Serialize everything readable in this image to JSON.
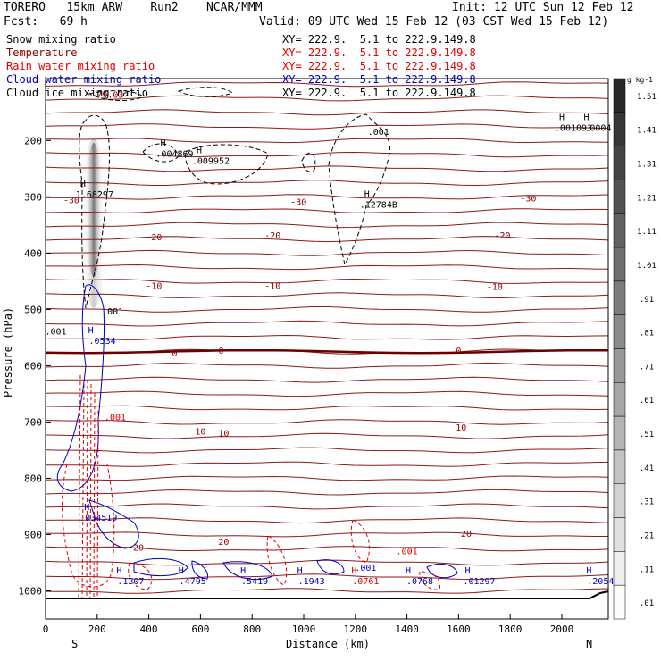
{
  "header": {
    "model": "TORERO   15km ARW    Run2    NCAR/MMM",
    "forecast": "Fcst:   69 h",
    "init": "Init: 12 UTC Sun 12 Feb 12",
    "valid": "Valid: 09 UTC Wed 15 Feb 12 (03 CST Wed 15 Feb 12)"
  },
  "legend": [
    {
      "label": "Snow mixing ratio",
      "xy": "XY= 222.9.  5.1 to 222.9.149.8",
      "color": "#000000"
    },
    {
      "label": "Temperature",
      "xy": "XY= 222.9.  5.1 to 222.9.149.8",
      "color": "#8b0000"
    },
    {
      "label": "Rain water mixing ratio",
      "xy": "XY= 222.9.  5.1 to 222.9.149.8",
      "color": "#e00000"
    },
    {
      "label": "Cloud water mixing ratio",
      "xy": "XY= 222.9.  5.1 to 222.9.149.8",
      "color": "#0000c0"
    },
    {
      "label": "Cloud ice mixing ratio",
      "xy": "XY= 222.9.  5.1 to 222.9.149.8",
      "color": "#000000"
    }
  ],
  "chart_data": {
    "type": "cross-section contour",
    "xlabel": "Distance (km)",
    "ylabel": "Pressure (hPa)",
    "xlim": [
      0,
      2180
    ],
    "ylim": [
      1050,
      90
    ],
    "x_ticks": [
      "0",
      "200",
      "400",
      "600",
      "800",
      "1000",
      "1200",
      "1400",
      "1600",
      "1800",
      "2000"
    ],
    "x_tick_values": [
      0,
      200,
      400,
      600,
      800,
      1000,
      1200,
      1400,
      1600,
      1800,
      2000
    ],
    "y_ticks": [
      "200",
      "300",
      "400",
      "500",
      "600",
      "700",
      "800",
      "900",
      "1000"
    ],
    "y_tick_values": [
      200,
      300,
      400,
      500,
      600,
      700,
      800,
      900,
      1000
    ],
    "x_end_labels": {
      "left": "S",
      "right": "N"
    },
    "colorbar": {
      "unit": "g kg-1",
      "labels": [
        "1.51",
        "1.41",
        "1.31",
        "1.21",
        "1.11",
        "1.01",
        ".91",
        ".81",
        ".71",
        ".61",
        ".51",
        ".41",
        ".31",
        ".21",
        ".11",
        ".01"
      ],
      "values": [
        1.51,
        1.41,
        1.31,
        1.21,
        1.11,
        1.01,
        0.91,
        0.81,
        0.71,
        0.61,
        0.51,
        0.41,
        0.31,
        0.21,
        0.11,
        0.01
      ]
    },
    "temperature_isotherms": [
      {
        "label": "-79.03",
        "label_x": 240,
        "p": 118
      },
      {
        "label": "-30",
        "label_x": 100,
        "p": 305
      },
      {
        "label": "-30",
        "label_x": 980,
        "p": 308
      },
      {
        "label": "-30",
        "label_x": 1870,
        "p": 302
      },
      {
        "label": "-20",
        "label_x": 420,
        "p": 371
      },
      {
        "label": "-20",
        "label_x": 880,
        "p": 368
      },
      {
        "label": "-20",
        "label_x": 1770,
        "p": 368
      },
      {
        "label": "-10",
        "label_x": 420,
        "p": 457
      },
      {
        "label": "-10",
        "label_x": 880,
        "p": 457
      },
      {
        "label": "-10",
        "label_x": 1740,
        "p": 459
      },
      {
        "label": "0",
        "label_x": 500,
        "p": 577
      },
      {
        "label": "0",
        "label_x": 680,
        "p": 572
      },
      {
        "label": "0",
        "label_x": 1600,
        "p": 572
      },
      {
        "label": "10",
        "label_x": 600,
        "p": 716
      },
      {
        "label": "10",
        "label_x": 690,
        "p": 719
      },
      {
        "label": "10",
        "label_x": 1610,
        "p": 709
      },
      {
        "label": "20",
        "label_x": 360,
        "p": 922
      },
      {
        "label": "20",
        "label_x": 690,
        "p": 912
      },
      {
        "label": "20",
        "label_x": 1630,
        "p": 898
      }
    ],
    "max_labels": [
      {
        "text": ".001093",
        "x": 2045,
        "p": 180,
        "color": "#000000"
      },
      {
        "text": ".0004",
        "x": 2140,
        "p": 180,
        "color": "#000000"
      },
      {
        "text": ".004869",
        "x": 500,
        "p": 226,
        "color": "#000000"
      },
      {
        "text": ".009952",
        "x": 640,
        "p": 238,
        "color": "#000000"
      },
      {
        "text": "1.68297",
        "x": 190,
        "p": 298,
        "color": "#000000"
      },
      {
        "text": ".12784B",
        "x": 1290,
        "p": 316,
        "color": "#000000"
      },
      {
        "text": ".0534",
        "x": 220,
        "p": 558,
        "color": "#0000c0"
      },
      {
        "text": ".034519",
        "x": 205,
        "p": 872,
        "color": "#0000c0"
      },
      {
        "text": ".1207",
        "x": 330,
        "p": 985,
        "color": "#0000c0"
      },
      {
        "text": ".4795",
        "x": 570,
        "p": 985,
        "color": "#0000c0"
      },
      {
        "text": ".5419",
        "x": 810,
        "p": 985,
        "color": "#0000c0"
      },
      {
        "text": ".1943",
        "x": 1030,
        "p": 985,
        "color": "#0000c0"
      },
      {
        "text": ".0761",
        "x": 1240,
        "p": 985,
        "color": "#e00000"
      },
      {
        "text": ".0768",
        "x": 1450,
        "p": 985,
        "color": "#0000c0"
      },
      {
        "text": ".01297",
        "x": 1680,
        "p": 985,
        "color": "#0000c0"
      },
      {
        "text": ".2054",
        "x": 2150,
        "p": 985,
        "color": "#0000c0"
      }
    ],
    "contour_labels": [
      {
        "text": ".001",
        "x": 1290,
        "p": 190,
        "color": "#000000"
      },
      {
        "text": ".001",
        "x": 40,
        "p": 545,
        "color": "#000000"
      },
      {
        "text": ".001",
        "x": 260,
        "p": 509,
        "color": "#000000"
      },
      {
        "text": ".001",
        "x": 270,
        "p": 697,
        "color": "#e00000"
      },
      {
        "text": ".001",
        "x": 1400,
        "p": 935,
        "color": "#e00000"
      },
      {
        "text": ".001",
        "x": 1240,
        "p": 964,
        "color": "#0000c0"
      }
    ]
  }
}
